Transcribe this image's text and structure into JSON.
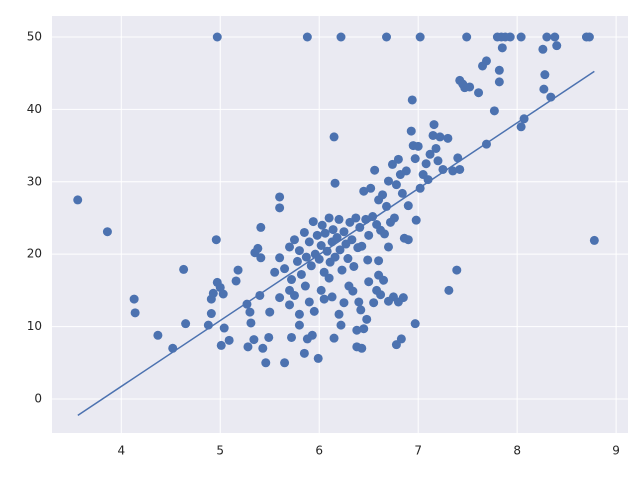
{
  "chart_data": {
    "type": "scatter",
    "xlim": [
      3.3,
      9.12
    ],
    "ylim": [
      -4.7,
      52.9
    ],
    "xticks": [
      4,
      5,
      6,
      7,
      8,
      9
    ],
    "yticks": [
      0,
      10,
      20,
      30,
      40,
      50
    ],
    "grid": true,
    "background": "#eaeaf2",
    "series": [
      {
        "kind": "points",
        "color": "#4c72b0",
        "x": [
          3.56,
          3.86,
          4.13,
          4.14,
          4.37,
          4.52,
          4.63,
          4.65,
          4.88,
          4.91,
          4.91,
          4.93,
          4.96,
          4.97,
          5.0,
          5.01,
          5.03,
          5.04,
          5.09,
          5.16,
          5.18,
          5.27,
          5.28,
          5.3,
          5.31,
          5.34,
          5.35,
          5.38,
          5.4,
          5.41,
          5.41,
          5.43,
          5.46,
          5.49,
          5.5,
          5.55,
          5.6,
          5.6,
          5.6,
          5.65,
          5.7,
          5.72,
          5.8,
          5.85,
          5.88,
          5.93,
          5.99,
          4.97,
          5.88,
          6.22,
          6.68,
          7.02,
          7.49,
          7.8,
          7.84,
          7.88,
          7.93,
          8.04,
          8.3,
          8.38,
          8.7,
          8.73,
          6.94,
          7.42,
          7.45,
          7.52,
          7.61,
          7.65,
          7.69,
          7.77,
          7.82,
          7.82,
          7.85,
          7.69,
          8.04,
          8.07,
          8.26,
          8.28,
          8.27,
          8.34,
          8.4,
          8.78,
          7.31,
          7.39,
          6.97,
          6.83,
          6.78,
          6.38,
          6.43,
          6.15,
          6.16,
          5.6,
          5.65,
          5.7,
          5.72,
          5.75,
          5.78,
          5.8,
          5.82,
          5.85,
          5.87,
          5.9,
          5.92,
          5.94,
          5.96,
          5.98,
          6.0,
          6.02,
          6.03,
          6.05,
          6.06,
          6.08,
          6.1,
          6.11,
          6.13,
          6.14,
          6.16,
          6.18,
          6.2,
          6.21,
          6.23,
          6.25,
          6.27,
          6.29,
          6.31,
          6.33,
          6.35,
          6.37,
          6.39,
          6.41,
          6.43,
          6.45,
          6.47,
          6.49,
          6.5,
          6.52,
          6.54,
          6.56,
          6.58,
          6.6,
          6.62,
          6.64,
          6.66,
          6.68,
          6.7,
          6.72,
          6.74,
          6.76,
          6.78,
          6.8,
          6.82,
          6.84,
          6.86,
          6.88,
          6.9,
          6.93,
          6.95,
          6.97,
          6.98,
          7.0,
          7.02,
          7.05,
          7.08,
          7.1,
          7.12,
          7.15,
          7.16,
          7.18,
          7.2,
          7.22,
          7.25,
          7.3,
          7.35,
          7.4,
          7.42,
          7.47,
          5.7,
          5.75,
          5.8,
          5.86,
          5.9,
          5.95,
          6.02,
          6.05,
          6.1,
          6.13,
          6.15,
          6.2,
          6.22,
          6.25,
          6.3,
          6.34,
          6.38,
          6.4,
          6.42,
          6.45,
          6.48,
          6.5,
          6.55,
          6.58,
          6.6,
          6.62,
          6.65,
          6.7,
          6.75,
          6.8,
          6.85,
          6.6,
          6.7,
          6.9
        ],
        "values": [
          27.5,
          23.1,
          13.8,
          11.9,
          8.8,
          7.0,
          17.9,
          10.4,
          10.2,
          11.8,
          13.8,
          14.6,
          22.0,
          16.1,
          15.4,
          7.4,
          14.5,
          9.8,
          8.1,
          16.3,
          17.8,
          13.1,
          7.2,
          12.0,
          10.5,
          8.2,
          20.2,
          20.8,
          14.3,
          23.7,
          19.5,
          7.0,
          5.0,
          8.5,
          12.0,
          17.5,
          27.9,
          26.4,
          14.0,
          5.0,
          15.0,
          8.5,
          10.2,
          6.3,
          8.3,
          8.8,
          5.6,
          50,
          50,
          50,
          50,
          50,
          50,
          50,
          50,
          50,
          50,
          50,
          50,
          50,
          50,
          50,
          41.3,
          44.0,
          43.5,
          43.1,
          42.3,
          46.0,
          46.7,
          39.8,
          45.4,
          43.8,
          48.5,
          35.2,
          37.6,
          38.7,
          48.3,
          44.8,
          42.8,
          41.7,
          48.8,
          21.9,
          15.0,
          17.8,
          10.4,
          8.3,
          7.5,
          7.2,
          7.0,
          36.2,
          29.8,
          19.5,
          18,
          21,
          16.5,
          22,
          19,
          20.5,
          17.2,
          23,
          19.6,
          21.7,
          18.4,
          24.5,
          20,
          22.6,
          19.3,
          21.2,
          24,
          17.5,
          22.9,
          20.4,
          25,
          18.9,
          21.7,
          23.4,
          19.6,
          22.3,
          24.8,
          20.6,
          17.8,
          23.1,
          21.4,
          19.4,
          24.4,
          22,
          18.3,
          25,
          20.9,
          23.7,
          21.1,
          28.7,
          24.8,
          19.2,
          22.6,
          29.1,
          25.2,
          31.6,
          24.1,
          27.5,
          23.3,
          28.2,
          22.8,
          26.6,
          30.1,
          24.4,
          32.4,
          25,
          29.6,
          33.1,
          31,
          28.4,
          22.2,
          31.5,
          26.7,
          37,
          35,
          33.2,
          24.7,
          34.9,
          29.1,
          31,
          32.5,
          30.3,
          33.8,
          36.4,
          37.9,
          34.6,
          32.9,
          36.2,
          31.7,
          36,
          31.5,
          33.3,
          31.7,
          43,
          13,
          14.3,
          11.7,
          15.6,
          13.4,
          12.1,
          15,
          13.8,
          16.7,
          14.1,
          8.4,
          11.7,
          10.2,
          13.3,
          15.6,
          14.9,
          9.5,
          13.4,
          12.3,
          9.7,
          11,
          16.2,
          13.3,
          15,
          17.1,
          14.4,
          16.4,
          13.5,
          14.1,
          13.4,
          14,
          19.1,
          21,
          22
        ]
      },
      {
        "kind": "line",
        "color": "#4c72b0",
        "x": [
          3.561,
          8.78
        ],
        "values": [
          -2.26,
          45.25
        ]
      }
    ]
  }
}
